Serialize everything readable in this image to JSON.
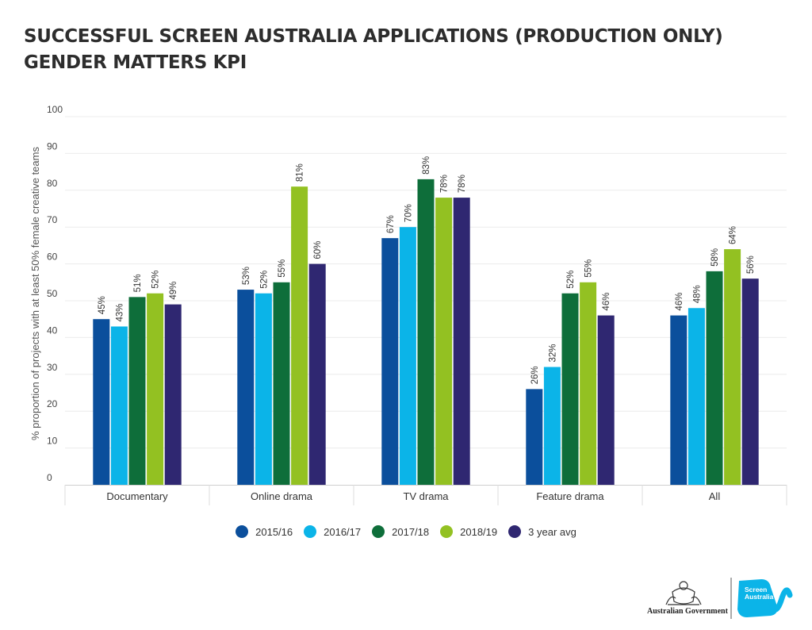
{
  "title": {
    "line1": "SUCCESSFUL SCREEN AUSTRALIA APPLICATIONS (PRODUCTION ONLY)",
    "line2": "GENDER MATTERS KPI"
  },
  "chart_data": {
    "type": "bar",
    "categories": [
      "Documentary",
      "Online drama",
      "TV drama",
      "Feature drama",
      "All"
    ],
    "series": [
      {
        "name": "2015/16",
        "color": "#0b4f9c",
        "values": [
          45,
          53,
          67,
          26,
          46
        ]
      },
      {
        "name": "2016/17",
        "color": "#0bb4e8",
        "values": [
          43,
          52,
          70,
          32,
          48
        ]
      },
      {
        "name": "2017/18",
        "color": "#0e6e3a",
        "values": [
          51,
          55,
          83,
          52,
          58
        ]
      },
      {
        "name": "2018/19",
        "color": "#93c122",
        "values": [
          52,
          81,
          78,
          55,
          64
        ]
      },
      {
        "name": "3 year avg",
        "color": "#2f2771",
        "values": [
          49,
          60,
          78,
          46,
          56
        ]
      }
    ],
    "data_labels": [
      [
        "45%",
        "53%",
        "67%",
        "26%",
        "46%"
      ],
      [
        "43%",
        "52%",
        "70%",
        "32%",
        "48%"
      ],
      [
        "51%",
        "55%",
        "83%",
        "52%",
        "58%"
      ],
      [
        "52%",
        "81%",
        "78%",
        "55%",
        "64%"
      ],
      [
        "49%",
        "60%",
        "78%",
        "46%",
        "56%"
      ]
    ],
    "ylabel": "% proportion of projects with at least 50% female creative teams",
    "ylim": [
      0,
      100
    ],
    "yticks": [
      "0",
      "10",
      "20",
      "30",
      "40",
      "50",
      "60",
      "70",
      "80",
      "90",
      "100"
    ],
    "grid": true,
    "legend_position": "bottom-center"
  },
  "logos": {
    "government": "Australian Government",
    "brand_line1": "Screen",
    "brand_line2": "Australia"
  }
}
